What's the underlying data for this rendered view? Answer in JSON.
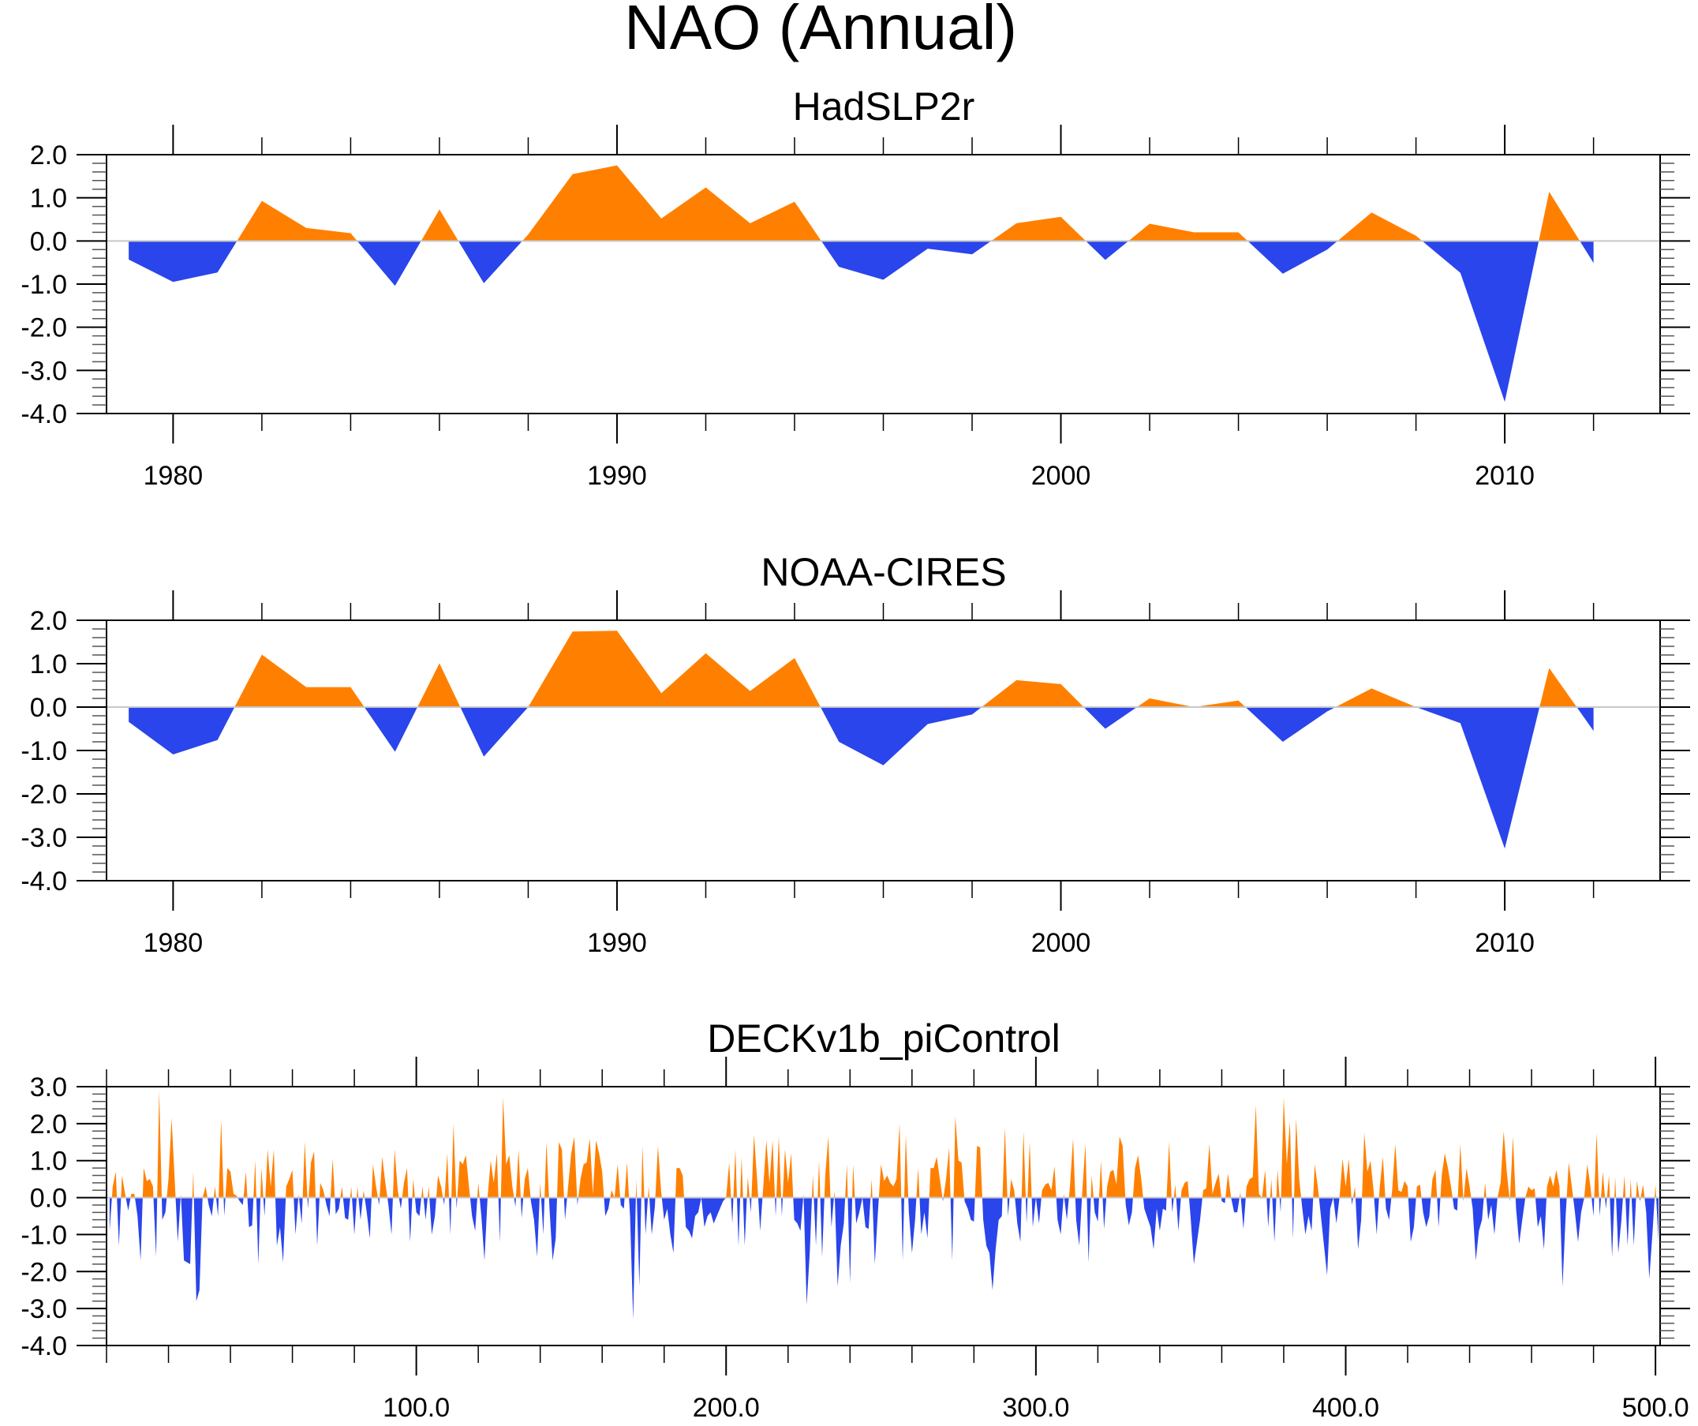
{
  "chart_data": {
    "title": "NAO (Annual)",
    "colors": {
      "positive": "#FF8000",
      "negative": "#2A45EB",
      "zero_line": "#C8C8C8",
      "axis": "#000000"
    },
    "panels": [
      {
        "type": "area",
        "title": "HadSLP2r",
        "xlim": [
          1978.5,
          2013.5
        ],
        "ylim": [
          -4.0,
          2.0
        ],
        "x_major_ticks": [
          1980,
          1990,
          2000,
          2010
        ],
        "x_tick_labels": [
          "1980",
          "1990",
          "2000",
          "2010"
        ],
        "x_minor_step": 2,
        "y_major_ticks": [
          2.0,
          1.0,
          0.0,
          -1.0,
          -2.0,
          -3.0,
          -4.0
        ],
        "y_tick_labels": [
          "2.0",
          "1.0",
          "0.0",
          "-1.0",
          "-2.0",
          "-3.0",
          "-4.0"
        ],
        "y_minor_step": 0.2,
        "x": [
          1979,
          1980,
          1981,
          1982,
          1983,
          1984,
          1985,
          1986,
          1987,
          1988,
          1989,
          1990,
          1991,
          1992,
          1993,
          1994,
          1995,
          1996,
          1997,
          1998,
          1999,
          2000,
          2001,
          2002,
          2003,
          2004,
          2005,
          2006,
          2007,
          2008,
          2009,
          2010,
          2011,
          2012
        ],
        "values": [
          -0.43,
          -0.95,
          -0.73,
          0.93,
          0.3,
          0.18,
          -1.04,
          0.73,
          -0.98,
          0.15,
          1.55,
          1.75,
          0.52,
          1.24,
          0.41,
          0.91,
          -0.6,
          -0.9,
          -0.18,
          -0.31,
          0.41,
          0.56,
          -0.44,
          0.4,
          0.2,
          0.2,
          -0.76,
          -0.2,
          0.66,
          0.12,
          -0.74,
          -3.73,
          1.14,
          -0.51
        ]
      },
      {
        "type": "area",
        "title": "NOAA-CIRES",
        "xlim": [
          1978.5,
          2013.5
        ],
        "ylim": [
          -4.0,
          2.0
        ],
        "x_major_ticks": [
          1980,
          1990,
          2000,
          2010
        ],
        "x_tick_labels": [
          "1980",
          "1990",
          "2000",
          "2010"
        ],
        "x_minor_step": 2,
        "y_major_ticks": [
          2.0,
          1.0,
          0.0,
          -1.0,
          -2.0,
          -3.0,
          -4.0
        ],
        "y_tick_labels": [
          "2.0",
          "1.0",
          "0.0",
          "-1.0",
          "-2.0",
          "-3.0",
          "-4.0"
        ],
        "y_minor_step": 0.2,
        "x": [
          1979,
          1980,
          1981,
          1982,
          1983,
          1984,
          1985,
          1986,
          1987,
          1988,
          1989,
          1990,
          1991,
          1992,
          1993,
          1994,
          1995,
          1996,
          1997,
          1998,
          1999,
          2000,
          2001,
          2002,
          2003,
          2004,
          2005,
          2006,
          2007,
          2008,
          2009,
          2010,
          2011,
          2012
        ],
        "values": [
          -0.34,
          -1.09,
          -0.76,
          1.21,
          0.46,
          0.46,
          -1.03,
          1.01,
          -1.14,
          0.0,
          1.74,
          1.76,
          0.32,
          1.24,
          0.37,
          1.13,
          -0.8,
          -1.34,
          -0.39,
          -0.17,
          0.62,
          0.53,
          -0.5,
          0.2,
          0.0,
          0.15,
          -0.8,
          -0.1,
          0.43,
          0.0,
          -0.37,
          -3.26,
          0.9,
          -0.55
        ]
      },
      {
        "type": "area",
        "title": "DECKv1b_piControl",
        "xlim": [
          0,
          501.5
        ],
        "ylim": [
          -4.0,
          3.0
        ],
        "x_major_ticks": [
          100,
          200,
          300,
          400,
          500
        ],
        "x_tick_labels": [
          "100.0",
          "200.0",
          "300.0",
          "400.0",
          "500.0"
        ],
        "x_minor_step": 20,
        "y_major_ticks": [
          3.0,
          2.0,
          1.0,
          0.0,
          -1.0,
          -2.0,
          -3.0,
          -4.0
        ],
        "y_tick_labels": [
          "3.0",
          "2.0",
          "1.0",
          "0.0",
          "-1.0",
          "-2.0",
          "-3.0",
          "-4.0"
        ],
        "y_minor_step": 0.2,
        "x_start": 1,
        "x_step": 1,
        "values": [
          -0.9,
          0.3,
          0.7,
          -1.3,
          0.6,
          0.1,
          -0.35,
          0.1,
          0.1,
          -0.5,
          -1.7,
          0.8,
          0.45,
          0.5,
          0.3,
          -1.6,
          2.9,
          -0.6,
          -0.4,
          0.5,
          2.15,
          0.5,
          -1.2,
          0.1,
          -1.7,
          -1.75,
          -1.8,
          0.7,
          -2.8,
          -2.5,
          0.0,
          0.3,
          -0.2,
          -0.5,
          0.3,
          -0.5,
          2.1,
          -0.5,
          0.8,
          0.7,
          0.1,
          0.05,
          -0.1,
          -0.2,
          0.7,
          -0.8,
          -0.75,
          1.0,
          -1.8,
          0.8,
          -0.5,
          1.3,
          0.3,
          1.3,
          -1.3,
          -0.8,
          -1.75,
          0.3,
          0.5,
          0.75,
          -1.0,
          0.1,
          -0.7,
          1.5,
          -0.3,
          0.95,
          1.25,
          -1.3,
          0.4,
          0.2,
          -0.2,
          -0.5,
          1.05,
          -0.45,
          -0.3,
          0.3,
          -0.55,
          -0.6,
          0.3,
          -1.0,
          0.3,
          -0.6,
          0.2,
          -0.4,
          -1.1,
          0.9,
          0.3,
          -0.2,
          1.1,
          0.4,
          -0.2,
          -1.0,
          1.3,
          0.2,
          -0.3,
          0.4,
          0.8,
          -1.2,
          0.5,
          -0.4,
          -0.5,
          0.3,
          -0.6,
          0.3,
          -1.0,
          -0.5,
          0.6,
          0.3,
          -0.2,
          1.2,
          -1.0,
          2.0,
          -0.3,
          1.0,
          0.9,
          1.15,
          0.3,
          -0.5,
          -0.9,
          0.4,
          -0.5,
          -1.7,
          0.0,
          1.0,
          0.4,
          1.2,
          -1.2,
          2.7,
          0.9,
          1.15,
          0.3,
          -0.25,
          1.3,
          -0.55,
          0.5,
          0.8,
          -0.1,
          -0.6,
          -1.6,
          0.4,
          -1.0,
          1.5,
          -0.3,
          -1.7,
          -1.1,
          1.5,
          1.3,
          -0.6,
          0.3,
          1.2,
          1.65,
          -0.2,
          0.5,
          0.9,
          0.95,
          1.6,
          0.1,
          1.55,
          1.2,
          0.7,
          -0.5,
          -0.3,
          0.2,
          0.0,
          0.9,
          -0.2,
          -0.3,
          0.95,
          -0.5,
          -3.3,
          0.5,
          -2.4,
          1.4,
          -1.0,
          0.3,
          -1.0,
          -0.25,
          1.4,
          0.2,
          -0.6,
          -0.3,
          -1.0,
          -1.5,
          0.8,
          0.8,
          0.6,
          -0.8,
          -0.9,
          -1.1,
          -0.5,
          -0.4,
          0.0,
          -0.8,
          -0.5,
          -0.4,
          -0.7,
          -0.5,
          -0.3,
          -0.1,
          0.0,
          0.95,
          -0.7,
          1.3,
          -1.3,
          1.1,
          -1.3,
          0.55,
          -0.4,
          1.7,
          0.5,
          -0.9,
          0.3,
          1.55,
          0.4,
          1.55,
          -0.5,
          1.65,
          -0.5,
          1.3,
          0.4,
          1.2,
          -0.6,
          -0.7,
          -0.9,
          0.1,
          -2.9,
          -1.5,
          0.6,
          -1.3,
          1.0,
          -1.6,
          0.6,
          1.65,
          -0.8,
          0.2,
          -2.4,
          -1.3,
          -0.7,
          0.9,
          -2.3,
          0.9,
          -0.7,
          -0.4,
          0.0,
          -0.8,
          -0.85,
          0.5,
          -1.8,
          -0.4,
          0.9,
          0.45,
          0.6,
          0.4,
          0.3,
          0.5,
          2.0,
          -1.7,
          1.7,
          -0.4,
          -1.5,
          -0.6,
          0.8,
          -1.0,
          -0.4,
          -1.1,
          0.8,
          0.8,
          1.1,
          0.5,
          -0.1,
          0.5,
          1.35,
          -1.7,
          2.2,
          1.0,
          0.95,
          -0.1,
          -0.3,
          -0.6,
          -0.65,
          1.4,
          1.35,
          -0.6,
          -1.3,
          -1.5,
          -2.5,
          -1.4,
          -0.6,
          -0.5,
          1.9,
          -0.5,
          0.5,
          0.2,
          -0.7,
          -1.2,
          1.8,
          -0.7,
          1.5,
          -0.8,
          0.0,
          -0.7,
          0.2,
          0.35,
          0.4,
          0.2,
          0.85,
          -0.6,
          -1.0,
          0.1,
          -0.6,
          0.3,
          1.6,
          -0.6,
          -1.3,
          0.2,
          1.45,
          -1.75,
          0.6,
          -0.4,
          -0.65,
          1.0,
          -0.85,
          0.3,
          0.7,
          0.75,
          0.35,
          1.65,
          1.4,
          -0.2,
          -0.75,
          -0.4,
          0.8,
          1.15,
          0.5,
          -0.3,
          -0.55,
          -0.8,
          -1.4,
          -0.3,
          -0.9,
          -0.3,
          -0.35,
          1.5,
          -0.4,
          0.35,
          -0.9,
          0.2,
          0.4,
          0.45,
          -0.6,
          -1.8,
          -1.2,
          -0.6,
          0.2,
          0.25,
          1.45,
          0.1,
          0.4,
          0.65,
          -0.1,
          -0.15,
          0.65,
          0.0,
          -0.4,
          -0.4,
          0.15,
          -0.85,
          0.3,
          0.5,
          0.55,
          2.5,
          0.1,
          0.0,
          0.75,
          -0.8,
          0.5,
          -1.2,
          0.75,
          -0.4,
          2.7,
          0.9,
          2.05,
          -1.1,
          2.15,
          0.5,
          -0.3,
          -1.0,
          -0.5,
          -0.9,
          0.9,
          0.3,
          -0.5,
          -1.3,
          -2.1,
          -0.3,
          0.0,
          -0.7,
          0.0,
          1.05,
          0.3,
          1.05,
          -0.2,
          0.3,
          -1.4,
          -0.6,
          1.75,
          0.7,
          1.0,
          0.2,
          -1.0,
          0.3,
          1.1,
          -0.3,
          -0.6,
          0.2,
          1.45,
          0.2,
          0.15,
          0.45,
          0.3,
          -1.2,
          -0.8,
          0.3,
          0.35,
          -0.4,
          -0.8,
          -0.5,
          0.5,
          0.75,
          -0.8,
          0.6,
          1.2,
          0.8,
          0.3,
          -0.3,
          -0.35,
          1.45,
          -0.1,
          0.8,
          0.3,
          -0.3,
          -1.7,
          -0.9,
          -0.6,
          0.4,
          -0.6,
          -0.2,
          -1.0,
          0.0,
          0.4,
          1.8,
          0.7,
          -0.1,
          1.65,
          -0.3,
          -1.25,
          -0.6,
          0.0,
          0.3,
          0.2,
          0.25,
          -0.8,
          -0.5,
          -1.4,
          0.3,
          0.6,
          0.3,
          0.75,
          0.3,
          -2.4,
          -0.5,
          0.95,
          0.3,
          -0.4,
          -1.2,
          -0.4,
          0.0,
          0.9,
          0.3,
          -0.5,
          1.75,
          -0.5,
          0.7,
          -0.3,
          0.6,
          -1.6,
          0.55,
          -1.5,
          -0.6,
          0.6,
          -1.3,
          0.5,
          -1.3,
          0.45,
          -0.1,
          0.35,
          -0.4,
          -2.2,
          -1.0,
          0.35,
          -1.2
        ]
      }
    ]
  }
}
